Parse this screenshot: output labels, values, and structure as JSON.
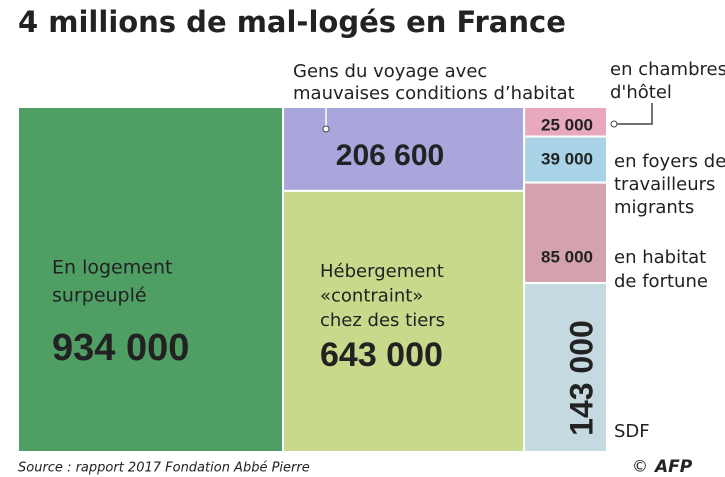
{
  "chart_data": {
    "type": "treemap",
    "title": "4 millions de mal-logés en France",
    "categories": [
      [
        "En logement",
        "surpeuplé"
      ],
      [
        "Gens du voyage avec",
        "mauvaises conditions d’habitat"
      ],
      [
        "Hébergement",
        "«contraint»",
        "chez des tiers"
      ],
      [
        "en chambres",
        "d'hôtel"
      ],
      [
        "en foyers de",
        "travailleurs",
        "migrants"
      ],
      [
        "en habitat",
        "de fortune"
      ],
      [
        "SDF"
      ]
    ],
    "values": [
      934000,
      206600,
      643000,
      25000,
      39000,
      85000,
      143000
    ],
    "value_labels": [
      "934 000",
      "206 600",
      "643 000",
      "25 000",
      "39 000",
      "85 000",
      "143 000"
    ],
    "colors": [
      "#4f9e63",
      "#a9a6dc",
      "#c9d98b",
      "#e9a9bd",
      "#a9d4e8",
      "#d4a2ae",
      "#c4d9e0"
    ],
    "source": "Source : rapport 2017 Fondation Abbé Pierre",
    "copyright": "©",
    "credit": "AFP"
  }
}
